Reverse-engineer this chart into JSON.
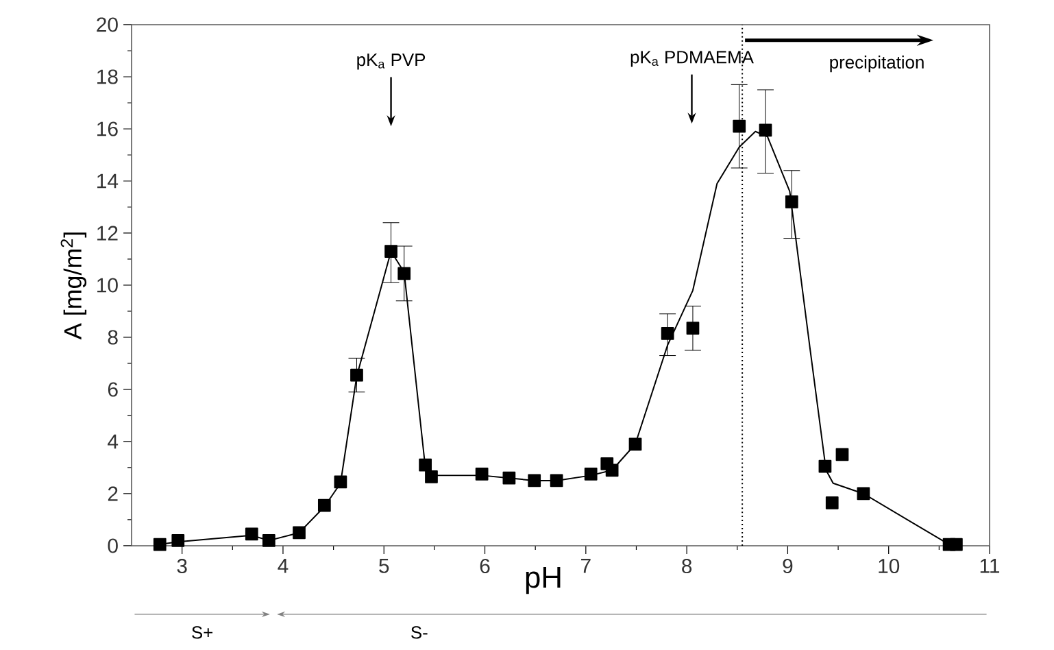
{
  "chart_data": {
    "type": "scatter",
    "xlabel": "pH",
    "ylabel": "A [mg/m$^{2}$]",
    "xlim": [
      2.5,
      11
    ],
    "ylim": [
      0,
      20
    ],
    "xticks": [
      3,
      4,
      5,
      6,
      7,
      8,
      9,
      10,
      11
    ],
    "yticks": [
      0,
      2,
      4,
      6,
      8,
      10,
      12,
      14,
      16,
      18,
      20
    ],
    "grid": false,
    "legend": false,
    "marker": "square",
    "line_style": "solid",
    "series": [
      {
        "color": "#000000",
        "x": [
          2.78,
          2.96,
          3.69,
          3.86,
          4.16,
          4.41,
          4.57,
          4.73,
          5.07,
          5.2,
          5.41,
          5.47,
          5.97,
          6.24,
          6.49,
          6.71,
          7.05,
          7.21,
          7.26,
          7.49,
          7.81,
          8.06,
          8.52,
          8.78,
          9.04,
          9.37,
          9.44,
          9.54,
          9.75,
          10.6,
          10.67
        ],
        "values": [
          0.05,
          0.2,
          0.45,
          0.2,
          0.5,
          1.55,
          2.45,
          6.55,
          11.3,
          10.45,
          3.1,
          2.65,
          2.75,
          2.6,
          2.5,
          2.5,
          2.75,
          3.15,
          2.9,
          3.9,
          8.15,
          8.35,
          16.1,
          15.95,
          13.2,
          3.05,
          1.65,
          3.5,
          2.0,
          0.05,
          0.05
        ],
        "errors": [
          null,
          null,
          null,
          null,
          null,
          null,
          null,
          [
            5.9,
            7.2
          ],
          [
            10.1,
            12.4
          ],
          [
            9.4,
            11.5
          ],
          null,
          null,
          null,
          null,
          null,
          null,
          null,
          null,
          null,
          null,
          [
            7.3,
            8.9
          ],
          [
            7.5,
            9.2
          ],
          [
            14.5,
            17.7
          ],
          [
            14.3,
            17.5
          ],
          [
            11.8,
            14.4
          ],
          null,
          null,
          null,
          null,
          null,
          null
        ]
      },
      {
        "type": "line",
        "color": "#000000",
        "marker": "none",
        "x": [
          2.78,
          2.96,
          3.69,
          3.86,
          4.16,
          4.41,
          4.57,
          4.73,
          5.07,
          5.2,
          5.41,
          5.47,
          5.97,
          6.24,
          6.49,
          6.71,
          7.05,
          7.26,
          7.49,
          7.81,
          8.06,
          8.3,
          8.52,
          8.68,
          8.8,
          9.02,
          9.22,
          9.38,
          9.45,
          9.75,
          10.62
        ],
        "values": [
          0.05,
          0.15,
          0.4,
          0.2,
          0.5,
          1.5,
          2.4,
          6.5,
          11.3,
          10.5,
          3.0,
          2.7,
          2.7,
          2.6,
          2.5,
          2.5,
          2.7,
          2.9,
          3.9,
          7.7,
          9.8,
          13.9,
          15.3,
          15.9,
          15.7,
          13.6,
          7.6,
          2.9,
          2.4,
          2.0,
          0.0
        ]
      }
    ],
    "ref_lines": [
      {
        "axis": "x",
        "value": 8.55,
        "line_style": "dotted",
        "label": "precipitation"
      }
    ],
    "annotations": [
      "pK$_{a}$ PVP",
      "pK$_{a}$ PDMAEMA",
      "S+",
      "S-"
    ]
  }
}
